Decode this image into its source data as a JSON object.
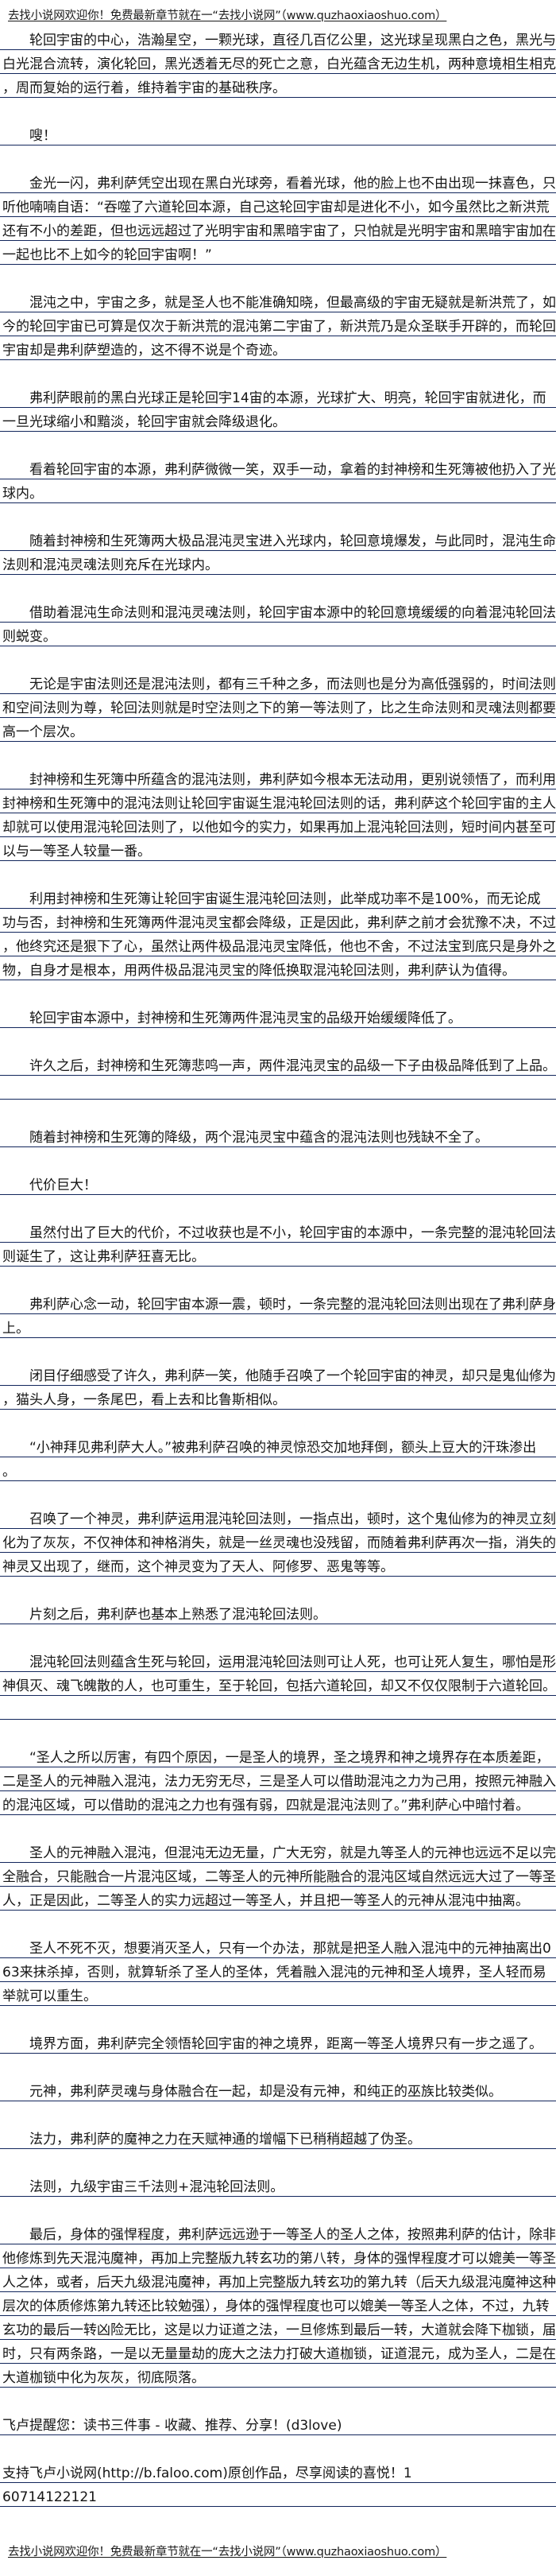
{
  "header_link": "去找小说网欢迎你！免费最新章节就在一“去找小说网”（www.quzhaoxiaoshuo.com）",
  "footer_link": "去找小说网欢迎你！免费最新章节就在一“去找小说网”（www.quzhaoxiaoshuo.com）",
  "rule_color": "#12265c",
  "paragraphs": [
    [
      "　　轮回宇宙的中心，浩瀚星空，一颗光球，直径几百亿公里，这光球呈现黑白之色，黑光与",
      "白光混合流转，演化轮回，黑光透着无尽的死亡之意，白光蕴含无边生机，两种意境相生相克",
      "，周而复始的运行着，维持着宇宙的基础秩序。"
    ],
    [
      "　　嗖！"
    ],
    [
      "　　金光一闪，弗利萨凭空出现在黑白光球旁，看着光球，他的脸上也不由出现一抹喜色，只",
      "听他喃喃自语：“吞噬了六道轮回本源，自己这轮回宇宙却是进化不小，如今虽然比之新洪荒",
      "还有不小的差距，但也远远超过了光明宇宙和黑暗宇宙了，只怕就是光明宇宙和黑暗宇宙加在",
      "一起也比不上如今的轮回宇宙啊！”"
    ],
    [
      "　　混沌之中，宇宙之多，就是圣人也不能准确知晓，但最高级的宇宙无疑就是新洪荒了，如",
      "今的轮回宇宙已可算是仅次于新洪荒的混沌第二宇宙了，新洪荒乃是众圣联手开辟的，而轮回",
      "宇宙却是弗利萨塑造的，这不得不说是个奇迹。"
    ],
    [
      "　　弗利萨眼前的黑白光球正是轮回宇14宙的本源，光球扩大、明亮，轮回宇宙就进化，而",
      "一旦光球缩小和黯淡，轮回宇宙就会降级退化。"
    ],
    [
      "　　看着轮回宇宙的本源，弗利萨微微一笑，双手一动，拿着的封神榜和生死簿被他扔入了光",
      "球内。"
    ],
    [
      "　　随着封神榜和生死簿两大极品混沌灵宝进入光球内，轮回意境爆发，与此同时，混沌生命",
      "法则和混沌灵魂法则充斥在光球内。"
    ],
    [
      "　　借助着混沌生命法则和混沌灵魂法则，轮回宇宙本源中的轮回意境缓缓的向着混沌轮回法",
      "则蜕变。"
    ],
    [
      "　　无论是宇宙法则还是混沌法则，都有三千种之多，而法则也是分为高低强弱的，时间法则",
      "和空间法则为尊，轮回法则就是时空法则之下的第一等法则了，比之生命法则和灵魂法则都要",
      "高一个层次。"
    ],
    [
      "　　封神榜和生死簿中所蕴含的混沌法则，弗利萨如今根本无法动用，更别说领悟了，而利用",
      "封神榜和生死簿中的混沌法则让轮回宇宙诞生混沌轮回法则的话，弗利萨这个轮回宇宙的主人",
      "却就可以使用混沌轮回法则了，以他如今的实力，如果再加上混沌轮回法则，短时间内甚至可",
      "以与一等圣人较量一番。"
    ],
    [
      "　　利用封神榜和生死簿让轮回宇宙诞生混沌轮回法则，此举成功率不是100%，而无论成",
      "功与否，封神榜和生死簿两件混沌灵宝都会降级，正是因此，弗利萨之前才会犹豫不决，不过",
      "，他终究还是狠下了心，虽然让两件极品混沌灵宝降低，他也不舍，不过法宝到底只是身外之",
      "物，自身才是根本，用两件极品混沌灵宝的降低换取混沌轮回法则，弗利萨认为值得。"
    ],
    [
      "　　轮回宇宙本源中，封神榜和生死簿两件混沌灵宝的品级开始缓缓降低了。"
    ],
    [
      "　　许久之后，封神榜和生死簿悲鸣一声，两件混沌灵宝的品级一下子由极品降低到了上品。",
      ""
    ],
    [
      "　　随着封神榜和生死簿的降级，两个混沌灵宝中蕴含的混沌法则也残缺不全了。"
    ],
    [
      "　　代价巨大！"
    ],
    [
      "　　虽然付出了巨大的代价，不过收获也是不小，轮回宇宙的本源中，一条完整的混沌轮回法",
      "则诞生了，这让弗利萨狂喜无比。"
    ],
    [
      "　　弗利萨心念一动，轮回宇宙本源一震，顿时，一条完整的混沌轮回法则出现在了弗利萨身",
      "上。"
    ],
    [
      "　　闭目仔细感受了许久，弗利萨一笑，他随手召唤了一个轮回宇宙的神灵，却只是鬼仙修为",
      "，猫头人身，一条尾巴，看上去和比鲁斯相似。"
    ],
    [
      "　　“小神拜见弗利萨大人。”被弗利萨召唤的神灵惊恐交加地拜倒，额头上豆大的汗珠渗出",
      "。"
    ],
    [
      "　　召唤了一个神灵，弗利萨运用混沌轮回法则，一指点出，顿时，这个鬼仙修为的神灵立刻",
      "化为了灰灰，不仅神体和神格消失，就是一丝灵魂也没残留，而随着弗利萨再次一指，消失的",
      "神灵又出现了，继而，这个神灵变为了天人、阿修罗、恶鬼等等。"
    ],
    [
      "　　片刻之后，弗利萨也基本上熟悉了混沌轮回法则。"
    ],
    [
      "　　混沌轮回法则蕴含生死与轮回，运用混沌轮回法则可让人死，也可让死人复生，哪怕是形",
      "神俱灭、魂飞魄散的人，也可重生，至于轮回，包括六道轮回，却又不仅仅限制于六道轮回。",
      ""
    ],
    [
      "　　“圣人之所以厉害，有四个原因，一是圣人的境界，圣之境界和神之境界存在本质差距，",
      "二是圣人的元神融入混沌，法力无穷无尽，三是圣人可以借助混沌之力为己用，按照元神融入",
      "的混沌区域，可以借助的混沌之力也有强有弱，四就是混沌法则了。”弗利萨心中暗忖着。"
    ],
    [
      "　　圣人的元神融入混沌，但混沌无边无量，广大无穷，就是九等圣人的元神也远远不足以完",
      "全融合，只能融合一片混沌区域，二等圣人的元神所能融合的混沌区域自然远远大过了一等圣",
      "人，正是因此，二等圣人的实力远超过一等圣人，并且把一等圣人的元神从混沌中抽离。"
    ],
    [
      "　　圣人不死不灭，想要消灭圣人，只有一个办法，那就是把圣人融入混沌中的元神抽离出0",
      "63来抹杀掉，否则，就算斩杀了圣人的圣体，凭着融入混沌的元神和圣人境界，圣人轻而易",
      "举就可以重生。"
    ],
    [
      "　　境界方面，弗利萨完全领悟轮回宇宙的神之境界，距离一等圣人境界只有一步之遥了。"
    ],
    [
      "　　元神，弗利萨灵魂与身体融合在一起，却是没有元神，和纯正的巫族比较类似。"
    ],
    [
      "　　法力，弗利萨的魔神之力在天赋神通的增幅下已稍稍超越了伪圣。"
    ],
    [
      "　　法则，九级宇宙三千法则+混沌轮回法则。"
    ],
    [
      "　　最后，身体的强悍程度，弗利萨远远逊于一等圣人的圣人之体，按照弗利萨的估计，除非",
      "他修炼到先天混沌魔神，再加上完整版九转玄功的第八转，身体的强悍程度才可以媲美一等圣",
      "人之体，或者，后天九级混沌魔神，再加上完整版九转玄功的第九转（后天九级混沌魔神这种",
      "层次的体质修炼第九转还比较勉强），身体的强悍程度也可以媲美一等圣人之体，不过，九转",
      "玄功的最后一转凶险无比，这是以力证道之法，一旦修炼到最后一转，大道就会降下枷锁，届",
      "时，只有两条路，一是以无量量劫的庞大之法力打破大道枷锁，证道混元，成为圣人，二是在",
      "大道枷锁中化为灰灰，彻底陨落。"
    ],
    [
      "飞卢提醒您：读书三件事 - 收藏、推荐、分享！(d3love)"
    ],
    [
      "支持飞卢小说网(http://b.faloo.com)原创作品，尽享阅读的喜悦！1",
      "60714122121"
    ]
  ]
}
